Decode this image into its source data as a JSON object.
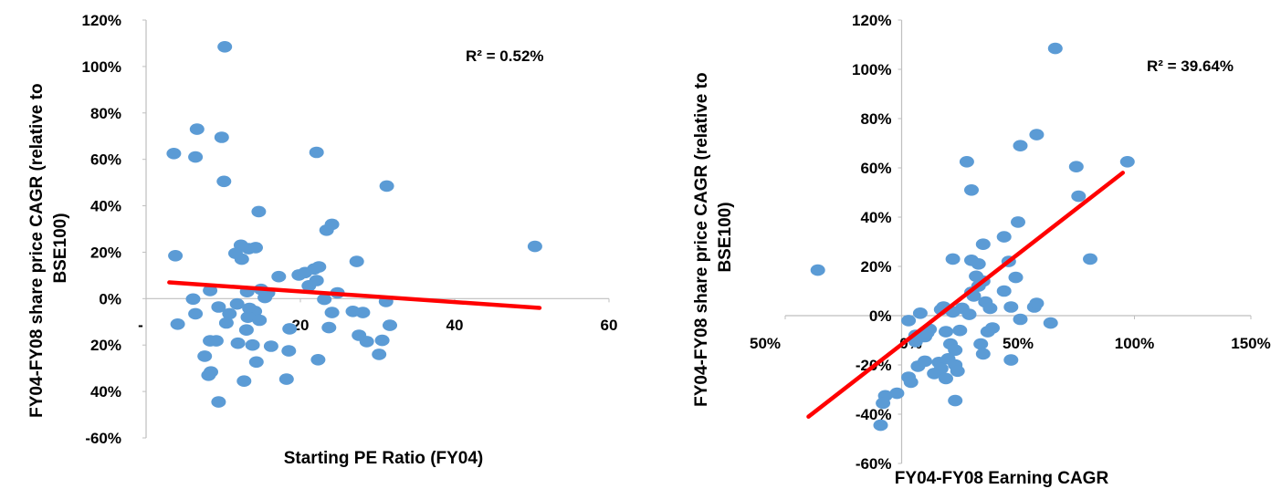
{
  "chart_data": [
    {
      "type": "scatter",
      "title": "",
      "xlabel": "Starting PE Ratio (FY04)",
      "ylabel": "FY04-FY08 share price CAGR (relative to BSE100)",
      "xlim": [
        0,
        60
      ],
      "ylim": [
        -60,
        120
      ],
      "x_ticks": [
        {
          "value": 0,
          "label": "-"
        },
        {
          "value": 20,
          "label": "20"
        },
        {
          "value": 40,
          "label": "40"
        },
        {
          "value": 60,
          "label": "60"
        }
      ],
      "y_ticks": [
        {
          "value": 120,
          "label": "120%"
        },
        {
          "value": 100,
          "label": "100%"
        },
        {
          "value": 80,
          "label": "80%"
        },
        {
          "value": 60,
          "label": "60%"
        },
        {
          "value": 40,
          "label": "40%"
        },
        {
          "value": 20,
          "label": "20%"
        },
        {
          "value": 0,
          "label": "0%"
        },
        {
          "value": -20,
          "label": "20%"
        },
        {
          "value": -40,
          "label": "40%"
        },
        {
          "value": -60,
          "label": "-60%"
        }
      ],
      "annotation": "R² = 0.52%",
      "trendline": {
        "x": [
          3,
          51
        ],
        "y": [
          7,
          -4
        ]
      },
      "point_color": "#5b9bd5",
      "line_color": "#ff0000",
      "points": [
        [
          10.2,
          108.5
        ],
        [
          3.6,
          62.5
        ],
        [
          6.6,
          73
        ],
        [
          6.4,
          61
        ],
        [
          9.8,
          69.5
        ],
        [
          10.1,
          50.5
        ],
        [
          22.1,
          63
        ],
        [
          31.2,
          48.5
        ],
        [
          50.4,
          22.5
        ],
        [
          3.8,
          18.5
        ],
        [
          12.3,
          23
        ],
        [
          12.4,
          17
        ],
        [
          13.3,
          21.5
        ],
        [
          14.2,
          22
        ],
        [
          14.6,
          37.5
        ],
        [
          11.6,
          19.5
        ],
        [
          23.4,
          29.5
        ],
        [
          24.1,
          32
        ],
        [
          27.3,
          16
        ],
        [
          21.8,
          12.8
        ],
        [
          22.4,
          13.7
        ],
        [
          19.8,
          10.2
        ],
        [
          20.6,
          11.2
        ],
        [
          17.2,
          9.5
        ],
        [
          21.1,
          5.5
        ],
        [
          22.1,
          7.8
        ],
        [
          24.8,
          2.5
        ],
        [
          15.8,
          2.5
        ],
        [
          13.1,
          3
        ],
        [
          8.3,
          3.5
        ],
        [
          14.9,
          4
        ],
        [
          15.4,
          0.5
        ],
        [
          6.1,
          -0.2
        ],
        [
          23.1,
          -0.3
        ],
        [
          31.1,
          -1.2
        ],
        [
          11.8,
          -2.3
        ],
        [
          9.4,
          -3.6
        ],
        [
          13.4,
          -4.2
        ],
        [
          14.1,
          -5.5
        ],
        [
          6.4,
          -6.5
        ],
        [
          10.8,
          -6.5
        ],
        [
          24.1,
          -6
        ],
        [
          26.8,
          -5.5
        ],
        [
          28.1,
          -6
        ],
        [
          13.2,
          -8
        ],
        [
          14.7,
          -9.3
        ],
        [
          10.4,
          -10.5
        ],
        [
          4.1,
          -11
        ],
        [
          13,
          -13.5
        ],
        [
          18.6,
          -13
        ],
        [
          23.7,
          -12.5
        ],
        [
          31.6,
          -11.5
        ],
        [
          27.6,
          -15.8
        ],
        [
          8.3,
          -18.2
        ],
        [
          9.1,
          -18.2
        ],
        [
          11.9,
          -19.2
        ],
        [
          13.8,
          -20
        ],
        [
          16.2,
          -20.5
        ],
        [
          28.6,
          -18.5
        ],
        [
          30.6,
          -18
        ],
        [
          7.6,
          -24.8
        ],
        [
          18.5,
          -22.5
        ],
        [
          22.3,
          -26.3
        ],
        [
          30.2,
          -24
        ],
        [
          14.3,
          -27.3
        ],
        [
          12.7,
          -35.5
        ],
        [
          8.4,
          -31.6
        ],
        [
          8.1,
          -33
        ],
        [
          18.2,
          -34.7
        ],
        [
          9.4,
          -44.5
        ]
      ]
    },
    {
      "type": "scatter",
      "title": "",
      "xlabel": "FY04-FY08 Earning CAGR",
      "ylabel": "FY04-FY08 share price CAGR (relative to BSE100)",
      "xlim": [
        -50,
        150
      ],
      "ylim": [
        -60,
        120
      ],
      "x_ticks": [
        {
          "value": -50,
          "label": "50%"
        },
        {
          "value": 0,
          "label": "0%"
        },
        {
          "value": 50,
          "label": "50%"
        },
        {
          "value": 100,
          "label": "100%"
        },
        {
          "value": 150,
          "label": "150%"
        }
      ],
      "y_ticks": [
        {
          "value": 120,
          "label": "120%"
        },
        {
          "value": 100,
          "label": "100%"
        },
        {
          "value": 80,
          "label": "80%"
        },
        {
          "value": 60,
          "label": "60%"
        },
        {
          "value": 40,
          "label": "40%"
        },
        {
          "value": 20,
          "label": "20%"
        },
        {
          "value": 0,
          "label": "0%"
        },
        {
          "value": -20,
          "label": "-20%"
        },
        {
          "value": -40,
          "label": "-40%"
        },
        {
          "value": -60,
          "label": "-60%"
        }
      ],
      "annotation": "R² = 39.64%",
      "trendline": {
        "x": [
          -40,
          95
        ],
        "y": [
          -41,
          58
        ]
      },
      "point_color": "#5b9bd5",
      "line_color": "#ff0000",
      "points": [
        [
          66,
          108.5
        ],
        [
          -36,
          18.5
        ],
        [
          58,
          73.5
        ],
        [
          51,
          69
        ],
        [
          75,
          60.5
        ],
        [
          97,
          62.5
        ],
        [
          76,
          48.5
        ],
        [
          81,
          23
        ],
        [
          28,
          62.5
        ],
        [
          30,
          51
        ],
        [
          50,
          38
        ],
        [
          44,
          32
        ],
        [
          35,
          29
        ],
        [
          30,
          22.5
        ],
        [
          22,
          23
        ],
        [
          33,
          21
        ],
        [
          46,
          22
        ],
        [
          49,
          15.5
        ],
        [
          32,
          16
        ],
        [
          35,
          14
        ],
        [
          33,
          12
        ],
        [
          44,
          10
        ],
        [
          30,
          9.5
        ],
        [
          31,
          8
        ],
        [
          36,
          5.5
        ],
        [
          18,
          3.5
        ],
        [
          26,
          3
        ],
        [
          38,
          3
        ],
        [
          47,
          3.5
        ],
        [
          57,
          3.5
        ],
        [
          58,
          5
        ],
        [
          17,
          2.5
        ],
        [
          8,
          1
        ],
        [
          22,
          1.5
        ],
        [
          29,
          0.5
        ],
        [
          51,
          -1.5
        ],
        [
          3,
          -2
        ],
        [
          64,
          -3
        ],
        [
          12,
          -5.5
        ],
        [
          19,
          -6.5
        ],
        [
          25,
          -6
        ],
        [
          39,
          -5
        ],
        [
          37,
          -6.5
        ],
        [
          6,
          -8
        ],
        [
          10,
          -8.5
        ],
        [
          11,
          -7
        ],
        [
          21,
          -11.5
        ],
        [
          23,
          -14
        ],
        [
          34,
          -11.5
        ],
        [
          6,
          -10.5
        ],
        [
          35,
          -15.5
        ],
        [
          16,
          -19
        ],
        [
          20,
          -17.5
        ],
        [
          23,
          -20
        ],
        [
          47,
          -18
        ],
        [
          7,
          -20.5
        ],
        [
          10,
          -18.5
        ],
        [
          14,
          -23.5
        ],
        [
          17,
          -21.5
        ],
        [
          19,
          -25.5
        ],
        [
          24,
          -22.5
        ],
        [
          3,
          -25
        ],
        [
          4,
          -27
        ],
        [
          -2,
          -31.5
        ],
        [
          -7,
          -32.5
        ],
        [
          -8,
          -35.5
        ],
        [
          23,
          -34.5
        ],
        [
          -9,
          -44.5
        ]
      ]
    }
  ]
}
